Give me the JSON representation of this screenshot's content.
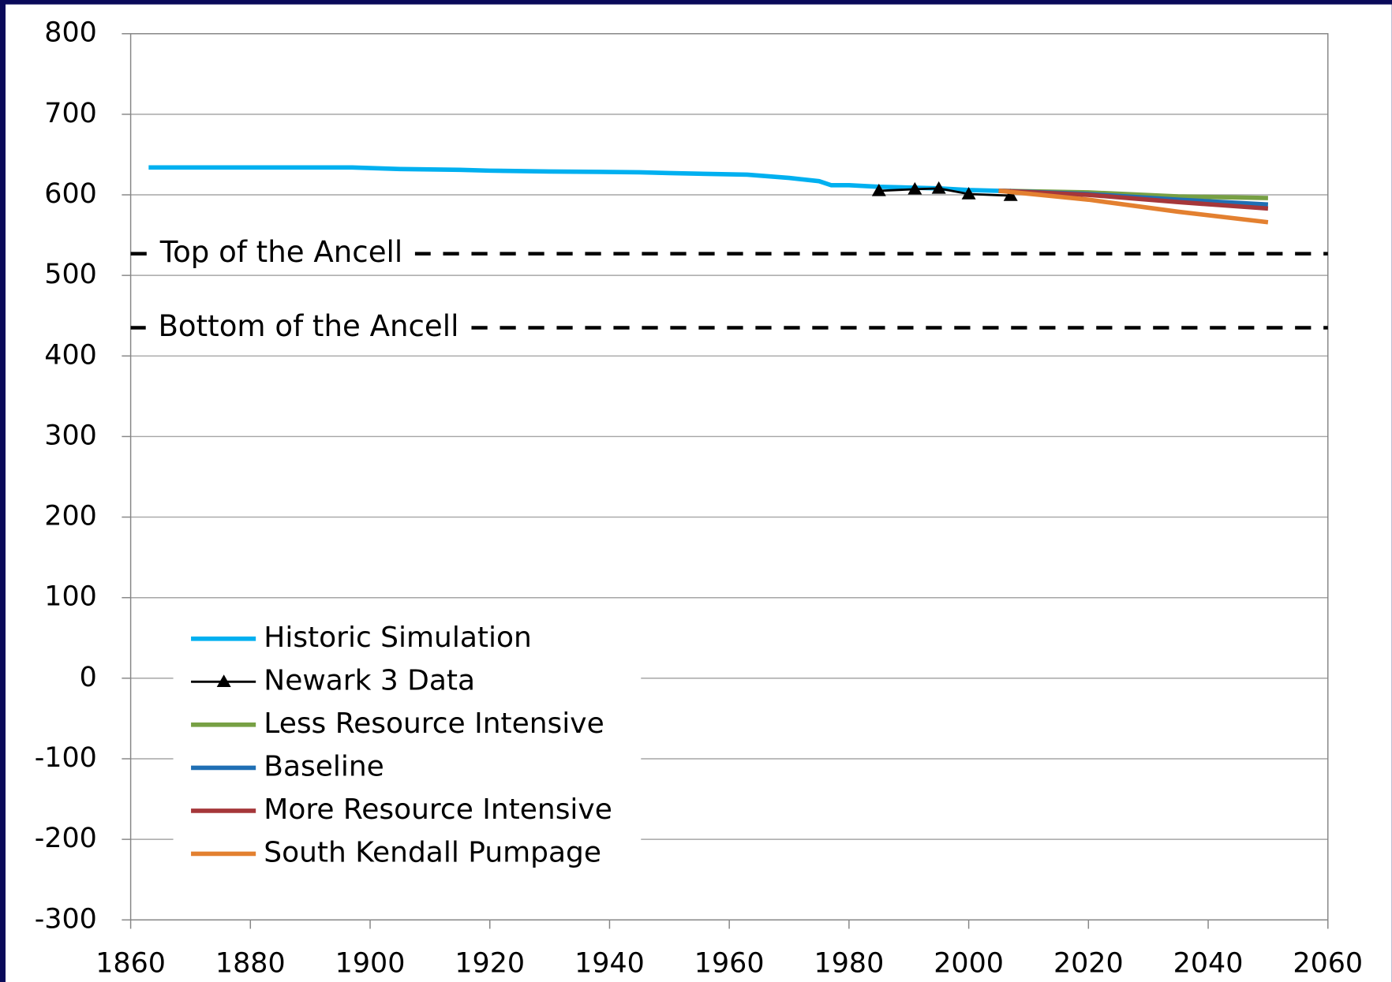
{
  "chart_data": {
    "type": "line",
    "xlim": [
      1860,
      2060
    ],
    "xticks": [
      1860,
      1880,
      1900,
      1920,
      1940,
      1960,
      1980,
      2000,
      2020,
      2040,
      2060
    ],
    "ylim": [
      -300,
      800
    ],
    "yticks": [
      -300,
      -200,
      -100,
      0,
      100,
      200,
      300,
      400,
      500,
      600,
      700,
      800
    ],
    "grid": true,
    "legend": "lower left",
    "reference_lines": [
      {
        "label": "Top of the Ancell",
        "value": 527
      },
      {
        "label": "Bottom of the Ancell",
        "value": 435
      }
    ],
    "series": [
      {
        "name": "Historic Simulation",
        "color": "#00b0f0",
        "x": [
          1863,
          1897,
          1905,
          1915,
          1920,
          1930,
          1945,
          1950,
          1963,
          1970,
          1975,
          1977,
          1980,
          1985,
          1990,
          1995,
          2000,
          2005
        ],
        "values": [
          634,
          634,
          632,
          631,
          630,
          629,
          628,
          627,
          625,
          621,
          617,
          612,
          612,
          610,
          609,
          608,
          606,
          605
        ]
      },
      {
        "name": "Newark 3 Data",
        "color": "#000000",
        "marker": "triangle",
        "x": [
          1985,
          1991,
          1995,
          2000,
          2007
        ],
        "values": [
          605,
          607,
          608,
          601,
          599
        ]
      },
      {
        "name": "Less Resource Intensive",
        "color": "#77a044",
        "x": [
          2005,
          2020,
          2035,
          2050
        ],
        "values": [
          605,
          603,
          598,
          596
        ]
      },
      {
        "name": "Baseline",
        "color": "#1f6fb4",
        "x": [
          2005,
          2020,
          2035,
          2050
        ],
        "values": [
          605,
          601,
          594,
          588
        ]
      },
      {
        "name": "More Resource Intensive",
        "color": "#a5373a",
        "x": [
          2005,
          2020,
          2035,
          2050
        ],
        "values": [
          605,
          600,
          591,
          583
        ]
      },
      {
        "name": "South Kendall Pumpage",
        "color": "#e38030",
        "x": [
          2005,
          2020,
          2035,
          2050
        ],
        "values": [
          605,
          594,
          579,
          566
        ]
      }
    ]
  }
}
